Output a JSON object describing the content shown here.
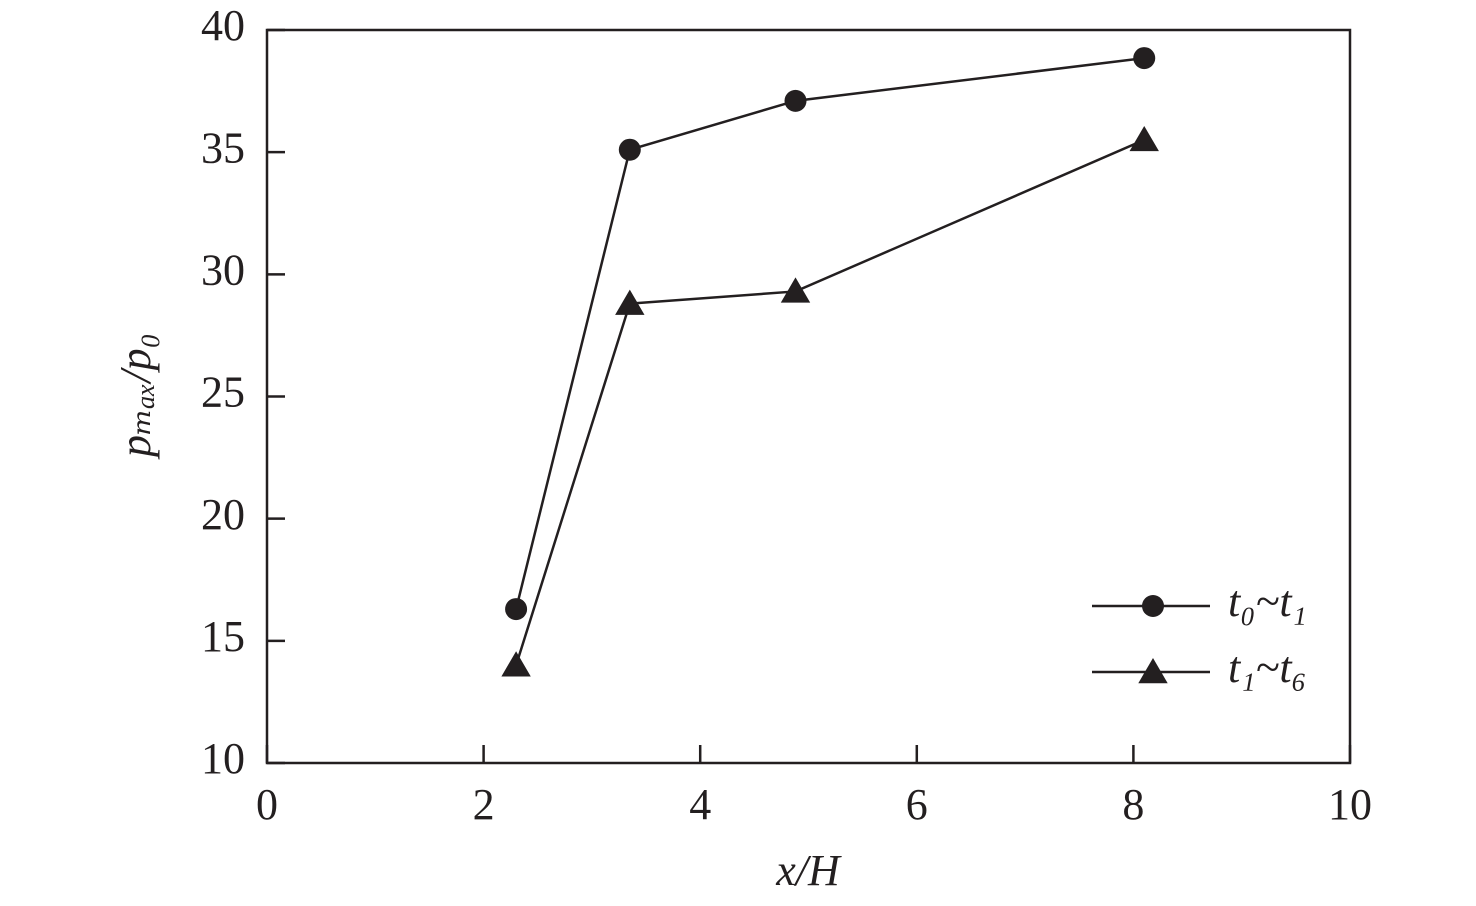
{
  "chart_data": {
    "type": "line",
    "x_label": "x/H",
    "y_label": "pₘₐₓ/p₀",
    "xlim": [
      0,
      10
    ],
    "xticks": [
      0,
      2,
      4,
      6,
      8,
      10
    ],
    "ylim": [
      10,
      40
    ],
    "yticks": [
      10,
      15,
      20,
      25,
      30,
      35,
      40
    ],
    "grid": false,
    "legend": "lower right",
    "series": [
      {
        "name": "t₀~t₁",
        "color": "#231f20",
        "marker": "circle",
        "x": [
          2.3,
          3.35,
          4.88,
          8.1
        ],
        "values": [
          16.3,
          35.1,
          37.1,
          38.85
        ]
      },
      {
        "name": "t₁~t₆",
        "color": "#231f20",
        "marker": "triangle",
        "x": [
          2.3,
          3.35,
          4.88,
          8.1
        ],
        "values": [
          14.0,
          28.8,
          29.3,
          35.5
        ]
      }
    ]
  }
}
